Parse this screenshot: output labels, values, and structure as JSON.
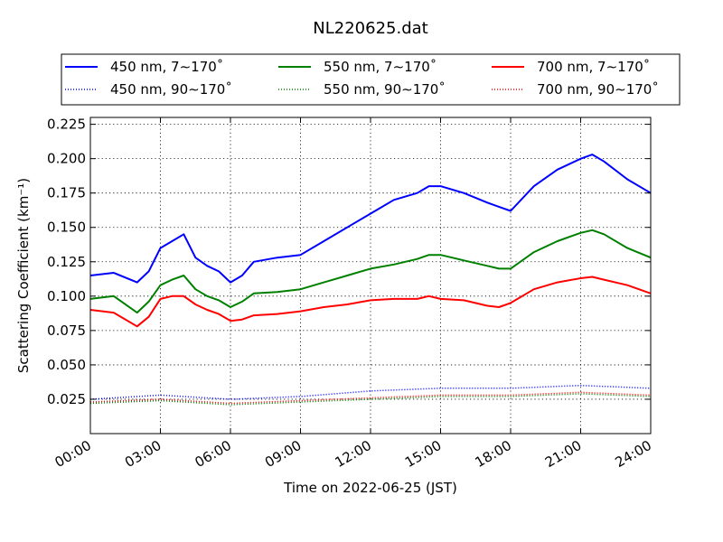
{
  "chart_data": {
    "type": "line",
    "title": "NL220625.dat",
    "xlabel": "Time on 2022-06-25 (JST)",
    "ylabel": "Scattering Coefficient (km⁻¹)",
    "xlim": [
      0,
      24
    ],
    "ylim": [
      0.0,
      0.23
    ],
    "x_ticks": [
      0,
      3,
      6,
      9,
      12,
      15,
      18,
      21,
      24
    ],
    "x_tick_labels": [
      "00:00",
      "03:00",
      "06:00",
      "09:00",
      "12:00",
      "15:00",
      "18:00",
      "21:00",
      "24:00"
    ],
    "y_ticks": [
      0.025,
      0.05,
      0.075,
      0.1,
      0.125,
      0.15,
      0.175,
      0.2,
      0.225
    ],
    "y_tick_labels": [
      "0.025",
      "0.050",
      "0.075",
      "0.100",
      "0.125",
      "0.150",
      "0.175",
      "0.200",
      "0.225"
    ],
    "grid": true,
    "legend_position": "top",
    "series": [
      {
        "name": "450 nm, 7∼170˚",
        "color": "#0000ff",
        "style": "solid",
        "x": [
          0,
          1,
          2,
          2.5,
          3,
          3.5,
          4,
          4.5,
          5,
          5.5,
          6,
          6.5,
          7,
          8,
          9,
          10,
          11,
          12,
          13,
          14,
          14.5,
          15,
          16,
          17,
          17.5,
          18,
          19,
          20,
          21,
          21.5,
          22,
          23,
          24
        ],
        "y": [
          0.115,
          0.117,
          0.11,
          0.118,
          0.135,
          0.14,
          0.145,
          0.128,
          0.122,
          0.118,
          0.11,
          0.115,
          0.125,
          0.128,
          0.13,
          0.14,
          0.15,
          0.16,
          0.17,
          0.175,
          0.18,
          0.18,
          0.175,
          0.168,
          0.165,
          0.162,
          0.18,
          0.192,
          0.2,
          0.203,
          0.198,
          0.185,
          0.175
        ]
      },
      {
        "name": "550 nm, 7∼170˚",
        "color": "#008000",
        "style": "solid",
        "x": [
          0,
          1,
          2,
          2.5,
          3,
          3.5,
          4,
          4.5,
          5,
          5.5,
          6,
          6.5,
          7,
          8,
          9,
          10,
          11,
          12,
          13,
          14,
          14.5,
          15,
          16,
          17,
          17.5,
          18,
          19,
          20,
          21,
          21.5,
          22,
          23,
          24
        ],
        "y": [
          0.098,
          0.1,
          0.088,
          0.096,
          0.108,
          0.112,
          0.115,
          0.105,
          0.1,
          0.097,
          0.092,
          0.096,
          0.102,
          0.103,
          0.105,
          0.11,
          0.115,
          0.12,
          0.123,
          0.127,
          0.13,
          0.13,
          0.126,
          0.122,
          0.12,
          0.12,
          0.132,
          0.14,
          0.146,
          0.148,
          0.145,
          0.135,
          0.128
        ]
      },
      {
        "name": "700 nm, 7∼170˚",
        "color": "#ff0000",
        "style": "solid",
        "x": [
          0,
          1,
          2,
          2.5,
          3,
          3.5,
          4,
          4.5,
          5,
          5.5,
          6,
          6.5,
          7,
          8,
          9,
          10,
          11,
          12,
          13,
          14,
          14.5,
          15,
          16,
          17,
          17.5,
          18,
          19,
          20,
          21,
          21.5,
          22,
          23,
          24
        ],
        "y": [
          0.09,
          0.088,
          0.078,
          0.085,
          0.098,
          0.1,
          0.1,
          0.094,
          0.09,
          0.087,
          0.082,
          0.083,
          0.086,
          0.087,
          0.089,
          0.092,
          0.094,
          0.097,
          0.098,
          0.098,
          0.1,
          0.098,
          0.097,
          0.093,
          0.092,
          0.095,
          0.105,
          0.11,
          0.113,
          0.114,
          0.112,
          0.108,
          0.102
        ]
      },
      {
        "name": "450 nm, 90∼170˚",
        "color": "#0000ff",
        "style": "dotted",
        "x": [
          0,
          3,
          6,
          9,
          12,
          15,
          18,
          21,
          24
        ],
        "y": [
          0.025,
          0.028,
          0.025,
          0.027,
          0.031,
          0.033,
          0.033,
          0.035,
          0.033
        ]
      },
      {
        "name": "550 nm, 90∼170˚",
        "color": "#008000",
        "style": "dotted",
        "x": [
          0,
          3,
          6,
          9,
          12,
          15,
          18,
          21,
          24
        ],
        "y": [
          0.022,
          0.024,
          0.021,
          0.023,
          0.025,
          0.027,
          0.027,
          0.029,
          0.027
        ]
      },
      {
        "name": "700 nm, 90∼170˚",
        "color": "#ff0000",
        "style": "dotted",
        "x": [
          0,
          3,
          6,
          9,
          12,
          15,
          18,
          21,
          24
        ],
        "y": [
          0.023,
          0.025,
          0.022,
          0.024,
          0.026,
          0.028,
          0.028,
          0.03,
          0.028
        ]
      }
    ]
  }
}
